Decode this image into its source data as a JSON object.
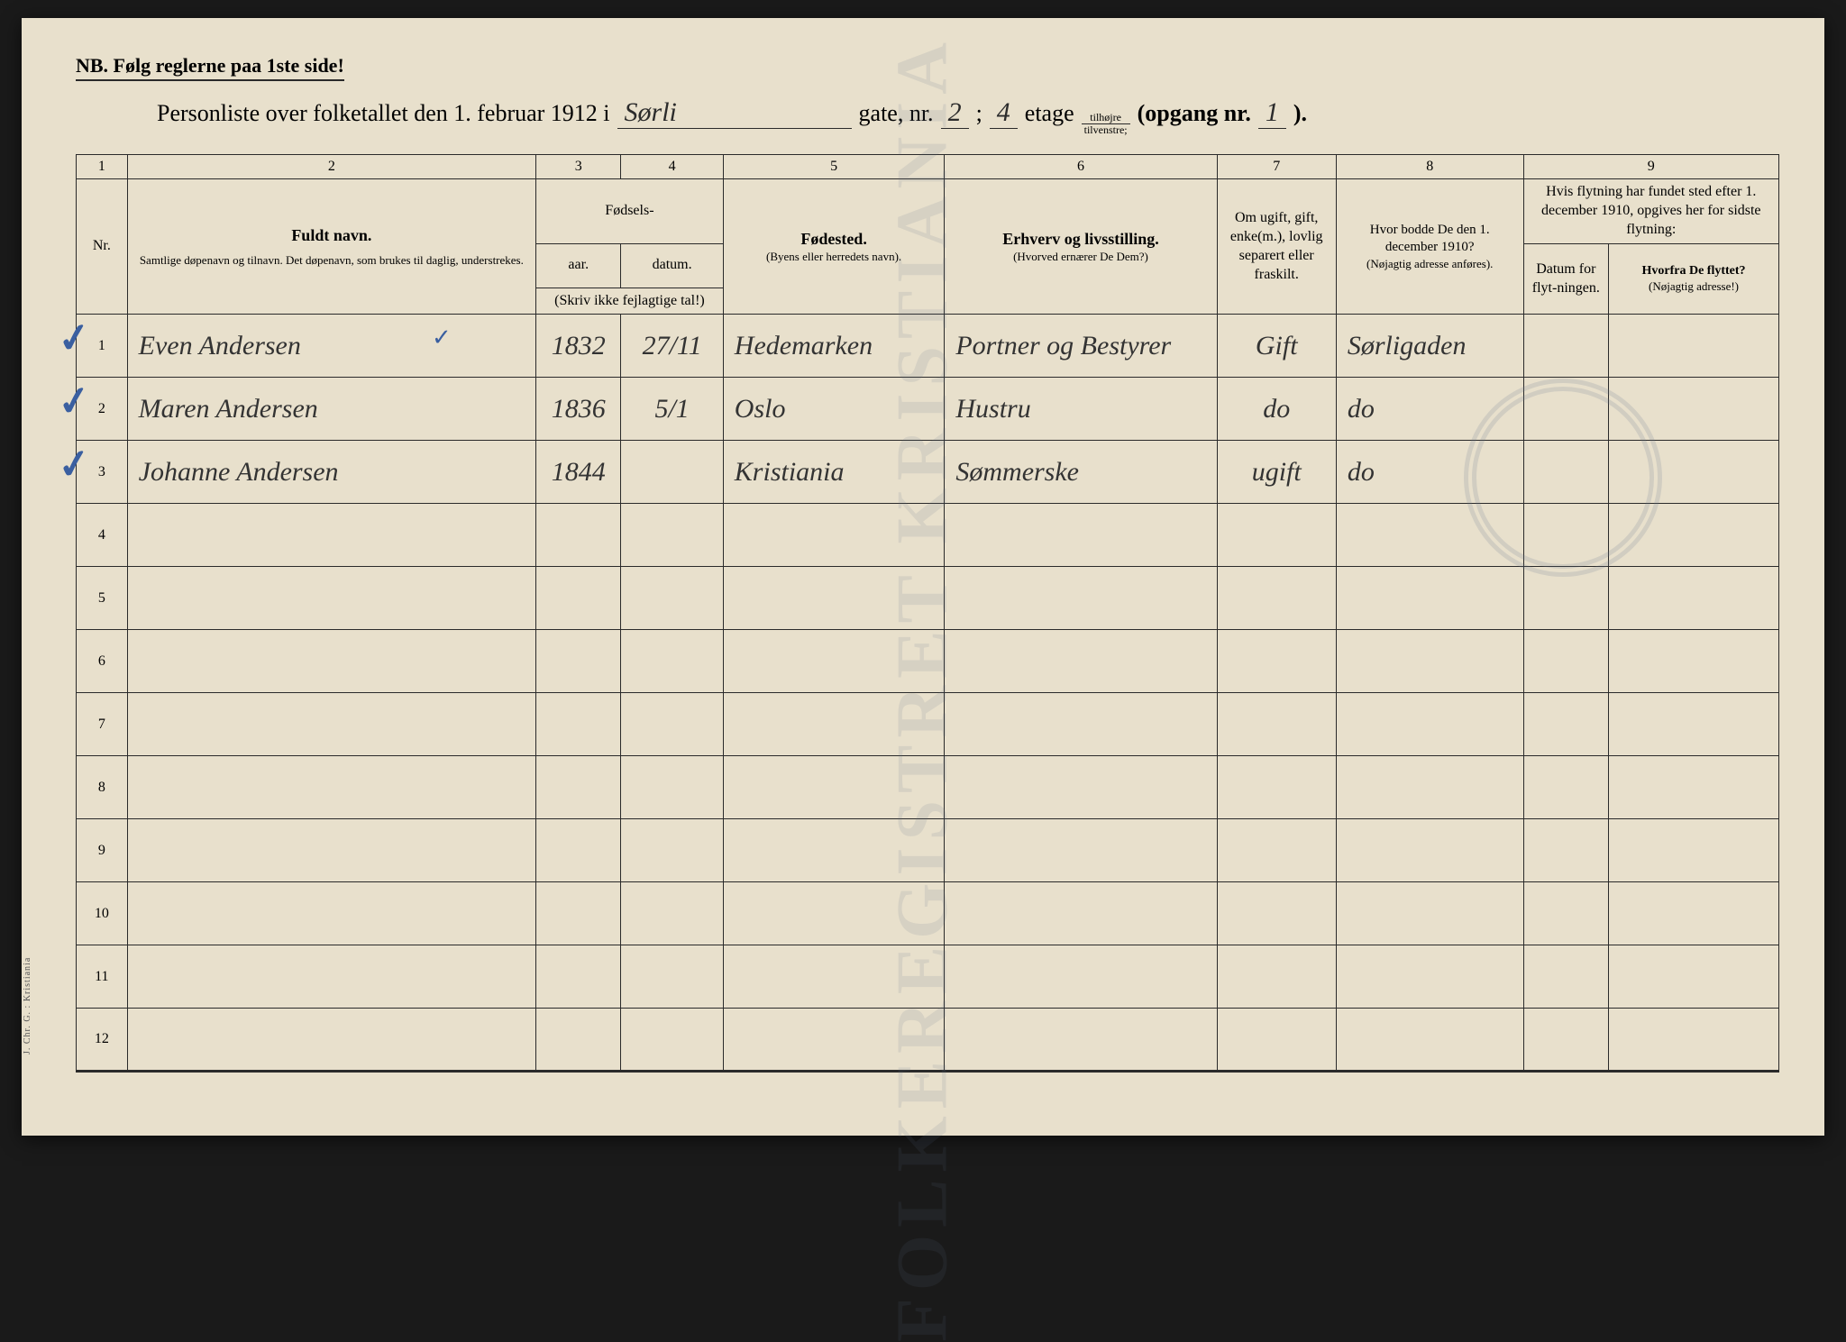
{
  "page": {
    "background_color": "#e8e0cc",
    "ink_color": "#2a2a2a",
    "handwriting_color": "#333333",
    "checkmark_color": "#3a5fa0",
    "stamp_color": "#6b7a95"
  },
  "header": {
    "nb": "NB.   Følg reglerne paa 1ste side!",
    "title_prefix": "Personliste over folketallet den 1. februar 1912 i",
    "street": "Sørli",
    "gate_label": "gate, nr.",
    "gate_nr": "2",
    "semicolon": ";",
    "etage_nr": "4",
    "etage_label": "etage",
    "fraction_top": "tilhøjre",
    "fraction_bot": "tilvenstre;",
    "opgang_label": "(opgang  nr.",
    "opgang_nr": "1",
    "opgang_close": ")."
  },
  "columns": {
    "nums": [
      "1",
      "2",
      "3",
      "4",
      "5",
      "6",
      "7",
      "8",
      "9"
    ],
    "c1": "Nr.",
    "c2_main": "Fuldt navn.",
    "c2_sub": "Samtlige døpenavn og tilnavn.  Det døpenavn, som brukes til daglig, understrekes.",
    "c34_top": "Fødsels-",
    "c3": "aar.",
    "c4": "datum.",
    "c34_sub": "(Skriv ikke fejlagtige tal!)",
    "c5_main": "Fødested.",
    "c5_sub": "(Byens eller herredets navn).",
    "c6_main": "Erhverv og livsstilling.",
    "c6_sub": "(Hvorved ernærer De Dem?)",
    "c7": "Om ugift, gift, enke(m.), lovlig separert eller fraskilt.",
    "c8_main": "Hvor bodde De den 1. december 1910?",
    "c8_sub": "(Nøjagtig adresse anføres).",
    "c9_top": "Hvis flytning har fundet sted efter 1. december 1910, opgives her for sidste flytning:",
    "c9a": "Datum for flyt-ningen.",
    "c9b_main": "Hvorfra De flyttet?",
    "c9b_sub": "(Nøjagtig adresse!)"
  },
  "rows": [
    {
      "nr": "1",
      "name": "Even Andersen",
      "year": "1832",
      "date": "27/11",
      "place": "Hedemarken",
      "occ": "Portner og Bestyrer",
      "status": "Gift",
      "addr": "Sørligaden"
    },
    {
      "nr": "2",
      "name": "Maren Andersen",
      "year": "1836",
      "date": "5/1",
      "place": "Oslo",
      "occ": "Hustru",
      "status": "do",
      "addr": "do"
    },
    {
      "nr": "3",
      "name": "Johanne Andersen",
      "year": "1844",
      "date": "",
      "place": "Kristiania",
      "occ": "Sømmerske",
      "status": "ugift",
      "addr": "do"
    },
    {
      "nr": "4"
    },
    {
      "nr": "5"
    },
    {
      "nr": "6"
    },
    {
      "nr": "7"
    },
    {
      "nr": "8"
    },
    {
      "nr": "9"
    },
    {
      "nr": "10"
    },
    {
      "nr": "11"
    },
    {
      "nr": "12"
    }
  ],
  "side_text": "J. Chr. G. : Kristiania",
  "widths": {
    "c1": "3%",
    "c2": "24%",
    "c3": "5%",
    "c4": "6%",
    "c5": "13%",
    "c6": "16%",
    "c7": "7%",
    "c8": "11%",
    "c9a": "5%",
    "c9b": "10%"
  }
}
